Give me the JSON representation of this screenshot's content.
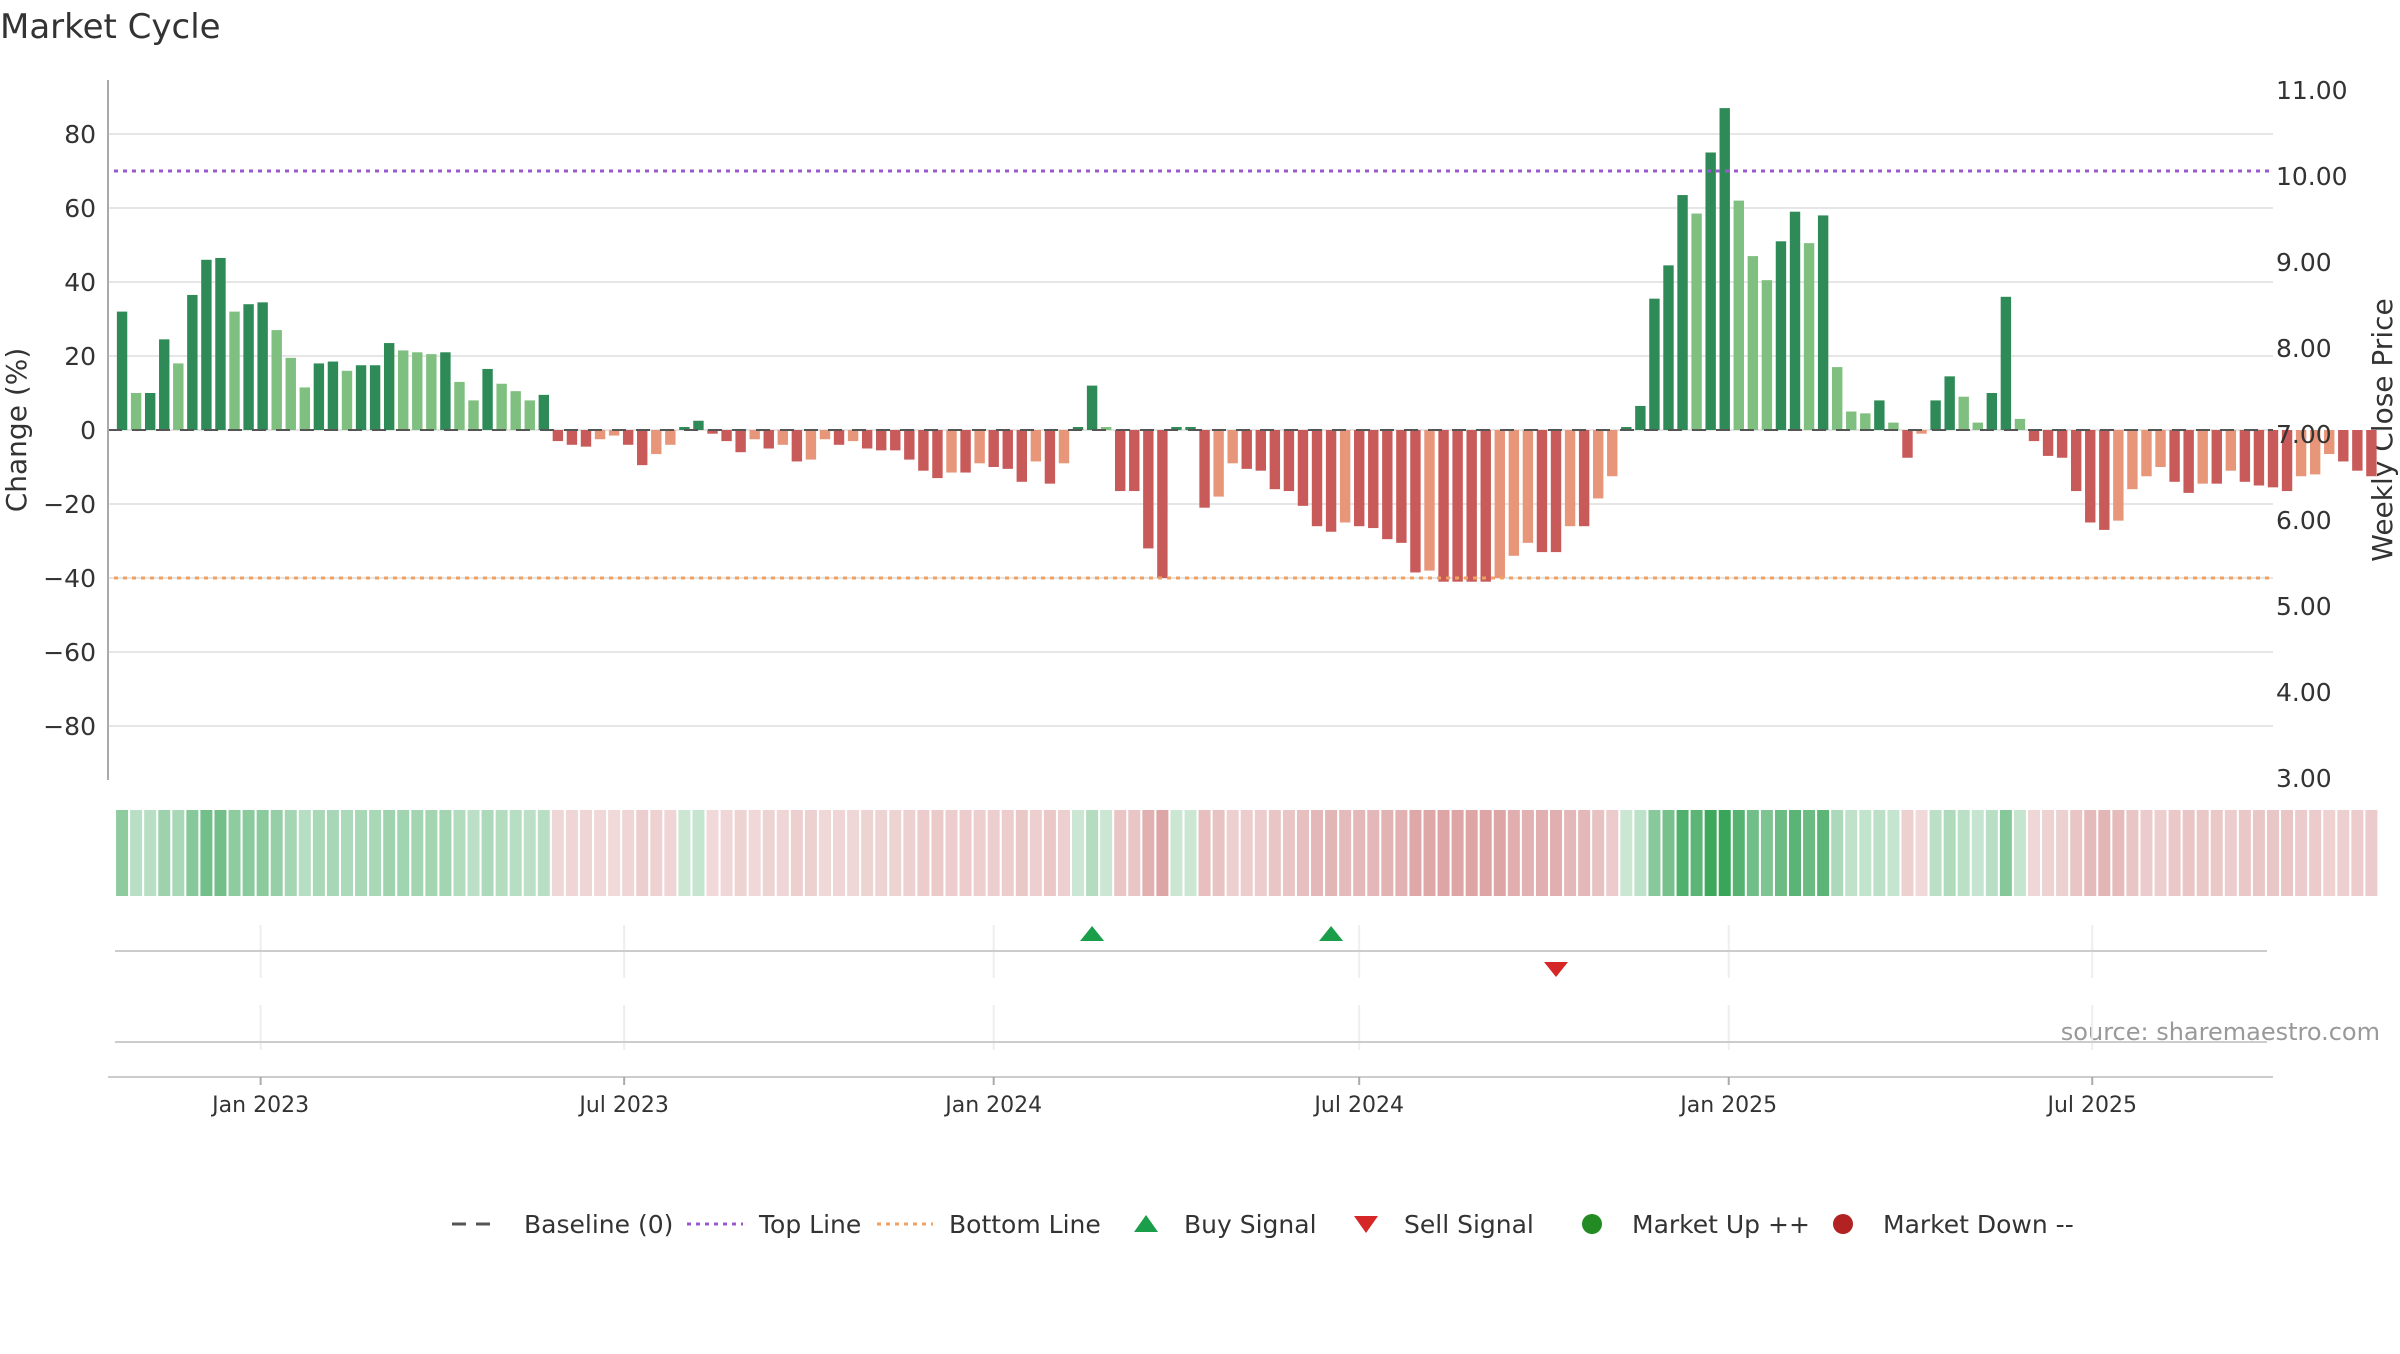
{
  "title": "Market Cycle",
  "source_note": "source: sharemaestro.com",
  "colors": {
    "up_strong": "#2e8b57",
    "up_weak": "#7fbf7f",
    "down_strong": "#c85a5a",
    "down_weak": "#e8967a",
    "top_line": "#9b59d0",
    "bottom_line": "#f0a060",
    "baseline": "#555555",
    "buy": "#1a9e4a",
    "sell": "#d62728",
    "market_up": "#228b22",
    "market_down": "#b22222",
    "grid": "#e6e6e6",
    "axis": "#aaaaaa",
    "text": "#333333"
  },
  "chart_data": {
    "type": "bar",
    "title": "Market Cycle",
    "xlabel": "",
    "ylabel": "Change (%)",
    "y2label": "Weekly Close Price",
    "ylim": [
      -95,
      95
    ],
    "y2lim": [
      3.0,
      11.0
    ],
    "yticks": [
      80,
      60,
      40,
      20,
      0,
      -20,
      -40,
      -60,
      -80
    ],
    "yticklabels": [
      "80",
      "60",
      "40",
      "20",
      "0",
      "−20",
      "−40",
      "−60",
      "−80"
    ],
    "y2ticks": [
      11.0,
      10.0,
      9.0,
      8.0,
      7.0,
      6.0,
      5.0,
      4.0,
      3.0
    ],
    "y2ticklabels": [
      "11.00",
      "10.00",
      "9.00",
      "8.00",
      "7.00",
      "6.00",
      "5.00",
      "4.00",
      "3.00"
    ],
    "x_ticks": [
      {
        "label": "Jan 2023",
        "date": "2023-01-01"
      },
      {
        "label": "Jul 2023",
        "date": "2023-07-01"
      },
      {
        "label": "Jan 2024",
        "date": "2024-01-01"
      },
      {
        "label": "Jul 2024",
        "date": "2024-07-01"
      },
      {
        "label": "Jan 2025",
        "date": "2025-01-01"
      },
      {
        "label": "Jul 2025",
        "date": "2025-07-01"
      }
    ],
    "x_range": [
      "2022-10-17",
      "2025-09-29"
    ],
    "top_line": 70,
    "bottom_line": -40,
    "baseline": 0,
    "grid": true,
    "legend_position": "bottom-center",
    "series": [
      {
        "name": "Change (%)",
        "start_date": "2022-10-24",
        "interval_days": 7,
        "values": [
          32,
          10,
          10,
          24.5,
          18,
          36.5,
          46,
          46.5,
          32,
          34,
          34.5,
          27,
          19.5,
          11.5,
          18,
          18.5,
          16,
          17.5,
          17.5,
          23.5,
          21.5,
          21,
          20.5,
          21,
          13,
          8,
          16.5,
          12.5,
          10.5,
          8,
          9.5,
          -3,
          -4,
          -4.5,
          -2.5,
          -1.5,
          -4,
          -9.5,
          -6.5,
          -4,
          0,
          2.5,
          -1,
          -3,
          -6,
          -2.5,
          -5,
          -4,
          -8.5,
          -8,
          -2.5,
          -4,
          -3,
          -5,
          -5.5,
          -5.5,
          -8,
          -11,
          -13,
          -11.5,
          -11.5,
          -9,
          -10,
          -10.5,
          -14,
          -8.5,
          -14.5,
          -9,
          0,
          12,
          0,
          -16.5,
          -16.5,
          -32,
          -40,
          0,
          0,
          -21,
          -18,
          -9,
          -10.5,
          -11,
          -16,
          -16.5,
          -20.5,
          -26,
          -27.5,
          -25,
          -26,
          -26.5,
          -29.5,
          -30.5,
          -38.5,
          -38,
          -41,
          -41,
          -41,
          -41,
          -40,
          -34,
          -30.5,
          -33,
          -33,
          -26,
          -26,
          -18.5,
          -12.5,
          0,
          6.5,
          35.5,
          44.5,
          63.5,
          58.5,
          75,
          87,
          62,
          47,
          40.5,
          51,
          59,
          50.5,
          58,
          17,
          5,
          4.5,
          8,
          2,
          -7.5,
          -1,
          8,
          14.5,
          9,
          2,
          10,
          36,
          3,
          -3,
          -7,
          -7.5,
          -16.5,
          -25,
          -27,
          -24.5,
          -16,
          -12.5,
          -10,
          -14,
          -17,
          -14.5,
          -14.5,
          -11,
          -14,
          -15,
          -15.5,
          -16.5,
          -12.5,
          -12,
          -6.5,
          -8.5,
          -11,
          -12.5
        ]
      }
    ],
    "signals": [
      {
        "name": "Buy Signal",
        "type": "buy",
        "date": "2024-02-19"
      },
      {
        "name": "Buy Signal",
        "type": "buy",
        "date": "2024-06-17"
      },
      {
        "name": "Sell Signal",
        "type": "sell",
        "date": "2024-10-07"
      }
    ]
  },
  "legend": [
    {
      "key": "baseline",
      "label": "Baseline (0)",
      "marker": "dash"
    },
    {
      "key": "top_line",
      "label": "Top Line",
      "marker": "dotted"
    },
    {
      "key": "bottom_line",
      "label": "Bottom Line",
      "marker": "dotted"
    },
    {
      "key": "buy",
      "label": "Buy Signal",
      "marker": "triangle-up"
    },
    {
      "key": "sell",
      "label": "Sell Signal",
      "marker": "triangle-down"
    },
    {
      "key": "market_up",
      "label": "Market Up ++",
      "marker": "circle"
    },
    {
      "key": "market_down",
      "label": "Market Down --",
      "marker": "circle"
    }
  ]
}
